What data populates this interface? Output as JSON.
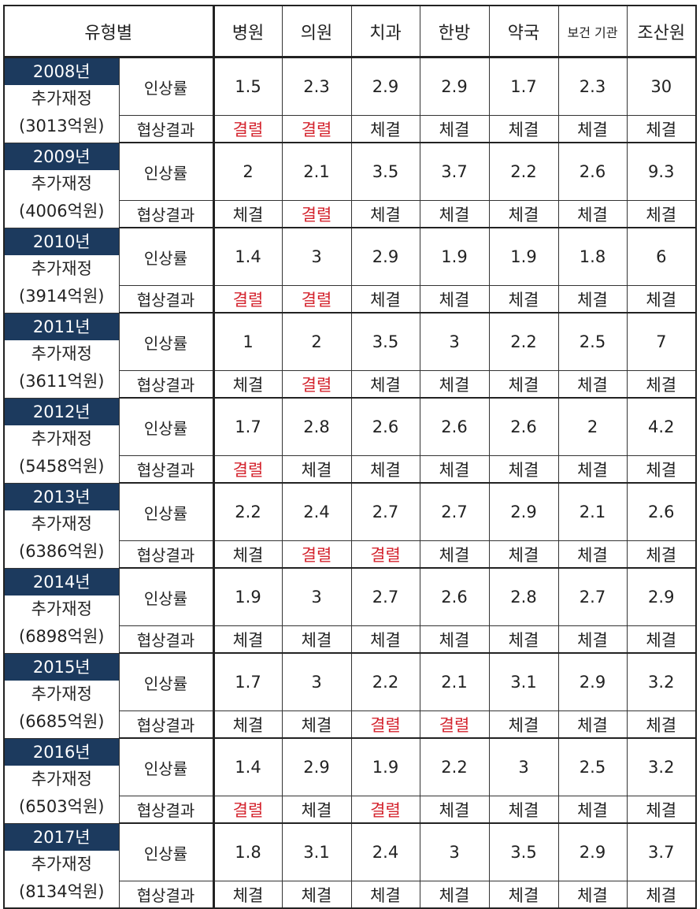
{
  "header": {
    "category_label": "유형별",
    "columns": [
      "병원",
      "의원",
      "치과",
      "한방",
      "약국",
      "보건 기관",
      "조산원"
    ]
  },
  "row_labels": {
    "rate": "인상률",
    "result": "협상결과"
  },
  "colors": {
    "year_badge_bg": "#1c3a5e",
    "failed_text": "#d4232d"
  },
  "rows": [
    {
      "year": "2008년",
      "budget_label": "추가재정",
      "budget": "(3013억원)",
      "rates": [
        "1.5",
        "2.3",
        "2.9",
        "2.9",
        "1.7",
        "2.3",
        "30"
      ],
      "results": [
        "결렬",
        "결렬",
        "체결",
        "체결",
        "체결",
        "체결",
        "체결"
      ]
    },
    {
      "year": "2009년",
      "budget_label": "추가재정",
      "budget": "(4006억원)",
      "rates": [
        "2",
        "2.1",
        "3.5",
        "3.7",
        "2.2",
        "2.6",
        "9.3"
      ],
      "results": [
        "체결",
        "결렬",
        "체결",
        "체결",
        "체결",
        "체결",
        "체결"
      ]
    },
    {
      "year": "2010년",
      "budget_label": "추가재정",
      "budget": "(3914억원)",
      "rates": [
        "1.4",
        "3",
        "2.9",
        "1.9",
        "1.9",
        "1.8",
        "6"
      ],
      "results": [
        "결렬",
        "결렬",
        "체결",
        "체결",
        "체결",
        "체결",
        "체결"
      ]
    },
    {
      "year": "2011년",
      "budget_label": "추가재정",
      "budget": "(3611억원)",
      "rates": [
        "1",
        "2",
        "3.5",
        "3",
        "2.2",
        "2.5",
        "7"
      ],
      "results": [
        "체결",
        "결렬",
        "체결",
        "체결",
        "체결",
        "체결",
        "체결"
      ]
    },
    {
      "year": "2012년",
      "budget_label": "추가재정",
      "budget": "(5458억원)",
      "rates": [
        "1.7",
        "2.8",
        "2.6",
        "2.6",
        "2.6",
        "2",
        "4.2"
      ],
      "results": [
        "결렬",
        "체결",
        "체결",
        "체결",
        "체결",
        "체결",
        "체결"
      ]
    },
    {
      "year": "2013년",
      "budget_label": "추가재정",
      "budget": "(6386억원)",
      "rates": [
        "2.2",
        "2.4",
        "2.7",
        "2.7",
        "2.9",
        "2.1",
        "2.6"
      ],
      "results": [
        "체결",
        "결렬",
        "결렬",
        "체결",
        "체결",
        "체결",
        "체결"
      ]
    },
    {
      "year": "2014년",
      "budget_label": "추가재정",
      "budget": "(6898억원)",
      "rates": [
        "1.9",
        "3",
        "2.7",
        "2.6",
        "2.8",
        "2.7",
        "2.9"
      ],
      "results": [
        "체결",
        "체결",
        "체결",
        "체결",
        "체결",
        "체결",
        "체결"
      ]
    },
    {
      "year": "2015년",
      "budget_label": "추가재정",
      "budget": "(6685억원)",
      "rates": [
        "1.7",
        "3",
        "2.2",
        "2.1",
        "3.1",
        "2.9",
        "3.2"
      ],
      "results": [
        "체결",
        "체결",
        "결렬",
        "결렬",
        "체결",
        "체결",
        "체결"
      ]
    },
    {
      "year": "2016년",
      "budget_label": "추가재정",
      "budget": "(6503억원)",
      "rates": [
        "1.4",
        "2.9",
        "1.9",
        "2.2",
        "3",
        "2.5",
        "3.2"
      ],
      "results": [
        "결렬",
        "체결",
        "결렬",
        "체결",
        "체결",
        "체결",
        "체결"
      ]
    },
    {
      "year": "2017년",
      "budget_label": "추가재정",
      "budget": "(8134억원)",
      "rates": [
        "1.8",
        "3.1",
        "2.4",
        "3",
        "3.5",
        "2.9",
        "3.7"
      ],
      "results": [
        "체결",
        "체결",
        "체결",
        "체결",
        "체결",
        "체결",
        "체결"
      ]
    }
  ]
}
